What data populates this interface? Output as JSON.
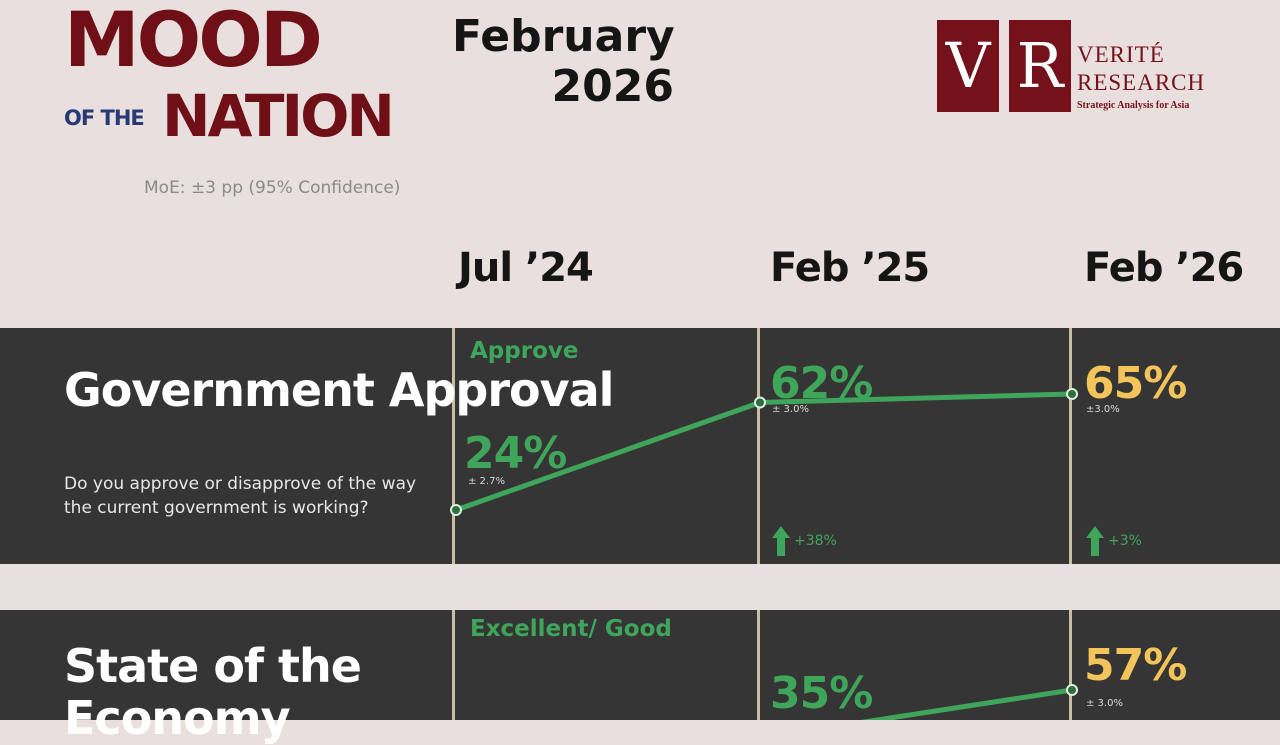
{
  "header": {
    "title_mood": "MOOD",
    "title_ofthe": "OF THE",
    "title_nation": "NATION",
    "moe": "MoE: ±3 pp (95% Confidence)",
    "date_month": "February",
    "date_year": "2026"
  },
  "logo": {
    "letter1": "V",
    "letter2": "R",
    "name_line1": "VERITÉ",
    "name_line2": "RESEARCH",
    "tagline": "Strategic Analysis for Asia"
  },
  "columns": [
    "Jul ’24",
    "Feb ’25",
    "Feb ’26"
  ],
  "colors": {
    "brand": "#6f1016",
    "panel_bg": "#353535",
    "line": "#3fa55a",
    "highlight": "#f2c45a"
  },
  "chart_data": [
    {
      "type": "line",
      "title": "Government Approval",
      "question": "Do you approve or disapprove of the way the current government is working?",
      "series": [
        {
          "name": "Approve",
          "x": [
            "Jul ’24",
            "Feb ’25",
            "Feb ’26"
          ],
          "values": [
            24,
            62,
            65
          ],
          "labels": [
            "24%",
            "62%",
            "65%"
          ],
          "moe": [
            "± 2.7%",
            "± 3.0%",
            "±3.0%"
          ],
          "changes": [
            "",
            "+38%",
            "+3%"
          ]
        }
      ]
    },
    {
      "type": "line",
      "title": "State of the Economy",
      "series": [
        {
          "name": "Excellent/ Good",
          "x": [
            "Jul ’24",
            "Feb ’25",
            "Feb ’26"
          ],
          "values": [
            null,
            35,
            57
          ],
          "labels": [
            "",
            "35%",
            "57%"
          ],
          "moe": [
            "",
            "",
            "± 3.0%"
          ]
        }
      ]
    }
  ]
}
